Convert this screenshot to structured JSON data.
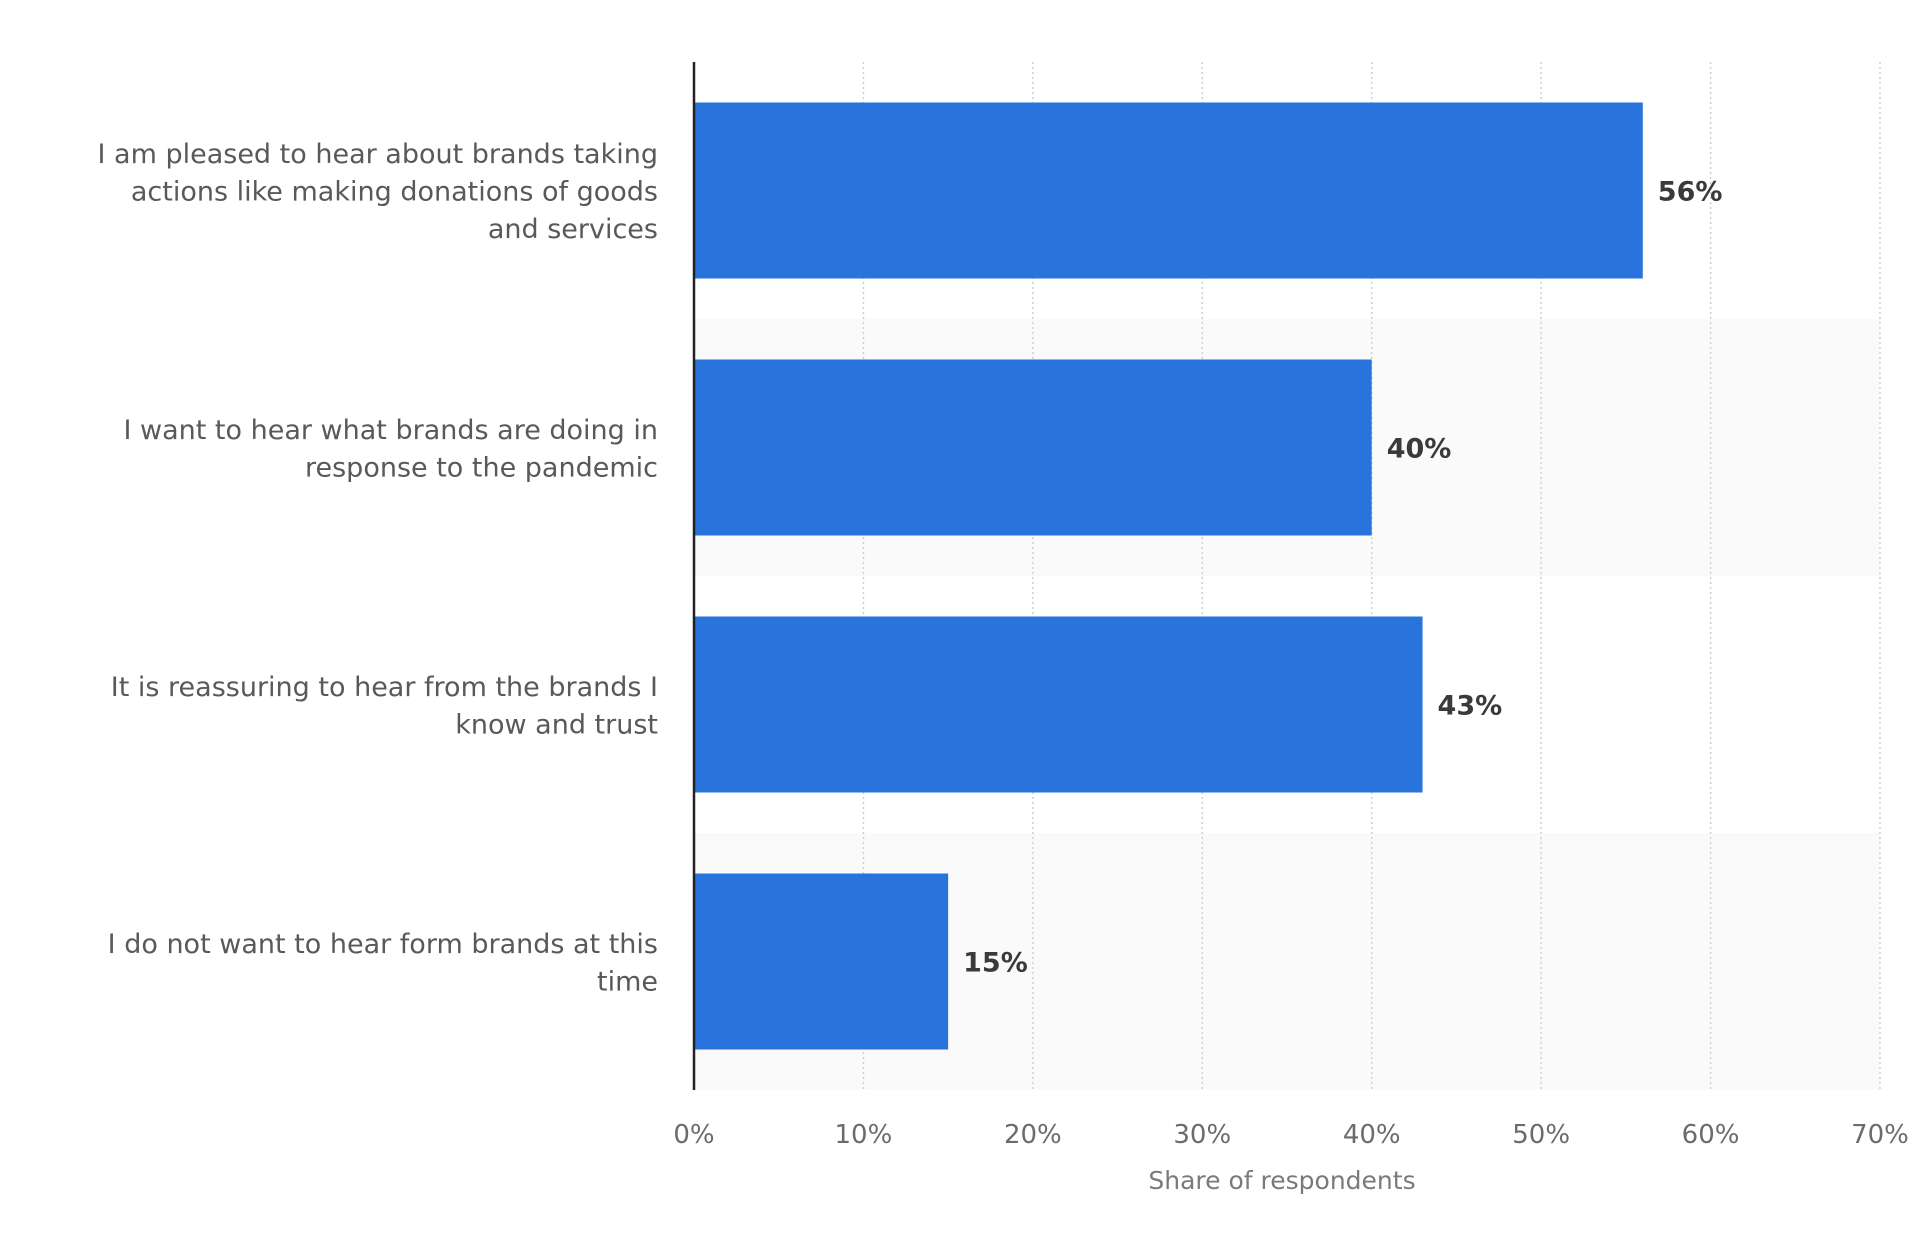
{
  "chart_data": {
    "type": "bar",
    "orientation": "horizontal",
    "categories": [
      "I am pleased to hear about brands taking actions like making donations of goods and services",
      "I want to hear what brands are doing in response to the pandemic",
      "It is reassuring to hear from the brands I know and trust",
      "I do not want to hear form brands at this time"
    ],
    "category_lines": [
      [
        "I am pleased to hear about brands taking",
        "actions like making donations of goods",
        "and services"
      ],
      [
        "I want to hear what brands are doing in",
        "response to the pandemic"
      ],
      [
        "It is reassuring to hear from the brands I",
        "know and trust"
      ],
      [
        "I do not want to hear form brands at this",
        "time"
      ]
    ],
    "values": [
      56,
      40,
      43,
      15
    ],
    "value_labels": [
      "56%",
      "40%",
      "43%",
      "15%"
    ],
    "xlabel": "Share of respondents",
    "ylabel": "",
    "xlim": [
      0,
      70
    ],
    "x_ticks": [
      0,
      10,
      20,
      30,
      40,
      50,
      60,
      70
    ],
    "x_tick_labels": [
      "0%",
      "10%",
      "20%",
      "30%",
      "40%",
      "50%",
      "60%",
      "70%"
    ],
    "grid": true,
    "bar_color": "#2873dc",
    "alt_band_color": "#fafafa",
    "grid_color": "#cfcfcf"
  }
}
